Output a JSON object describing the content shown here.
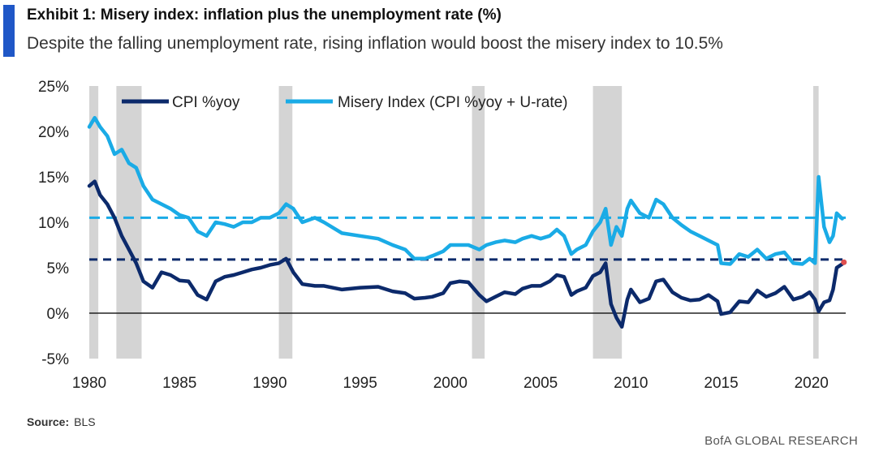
{
  "header": {
    "title": "Exhibit 1: Misery index: inflation plus the unemployment rate (%)",
    "subtitle": "Despite the falling unemployment rate, rising inflation would boost the misery index to 10.5%"
  },
  "source": {
    "label": "Source:",
    "value": "BLS"
  },
  "footer": {
    "brand": "BofA GLOBAL RESEARCH"
  },
  "colors": {
    "accent": "#1f57c7",
    "cpi": "#0c2a6b",
    "misery": "#1aabe6",
    "recession": "#d4d4d4",
    "projection_dot": "#e05050"
  },
  "chart_data": {
    "type": "line",
    "title": "Exhibit 1: Misery index: inflation plus the unemployment rate (%)",
    "xlabel": "",
    "ylabel": "",
    "xlim": [
      1980,
      2021.9
    ],
    "ylim": [
      -5,
      25
    ],
    "y_ticks": [
      -5,
      0,
      5,
      10,
      15,
      20,
      25
    ],
    "y_tick_labels": [
      "-5%",
      "0%",
      "5%",
      "10%",
      "15%",
      "20%",
      "25%"
    ],
    "x_ticks": [
      1980,
      1985,
      1990,
      1995,
      2000,
      2005,
      2010,
      2015,
      2020
    ],
    "x_tick_labels": [
      "1980",
      "1985",
      "1990",
      "1995",
      "2000",
      "2005",
      "2010",
      "2015",
      "2020"
    ],
    "legend_position": "top",
    "recessions": [
      [
        1980.0,
        1980.5
      ],
      [
        1981.5,
        1982.9
      ],
      [
        1990.5,
        1991.25
      ],
      [
        2001.2,
        2001.9
      ],
      [
        2007.9,
        2009.5
      ],
      [
        2020.1,
        2020.4
      ]
    ],
    "reference_lines": [
      {
        "name": "Misery index projection",
        "value": 10.5,
        "style": "dashed",
        "color": "#1aabe6"
      },
      {
        "name": "CPI projection",
        "value": 5.9,
        "style": "dashed",
        "color": "#0c2a6b"
      },
      {
        "name": "zero",
        "value": 0,
        "style": "solid",
        "color": "#222222"
      }
    ],
    "projection_point": {
      "x": 2021.8,
      "y": 5.6
    },
    "series": [
      {
        "name": "CPI %yoy",
        "color": "#0c2a6b",
        "x": [
          1980.0,
          1980.3,
          1980.6,
          1981.0,
          1981.4,
          1981.8,
          1982.2,
          1982.6,
          1983.0,
          1983.5,
          1984.0,
          1984.5,
          1985.0,
          1985.5,
          1986.0,
          1986.5,
          1987.0,
          1987.5,
          1988.0,
          1988.5,
          1989.0,
          1989.5,
          1990.0,
          1990.5,
          1990.9,
          1991.3,
          1991.8,
          1992.5,
          1993.0,
          1994.0,
          1995.0,
          1996.0,
          1996.8,
          1997.5,
          1998.0,
          1998.6,
          1999.0,
          1999.6,
          2000.0,
          2000.5,
          2001.0,
          2001.6,
          2002.0,
          2002.5,
          2003.0,
          2003.6,
          2004.0,
          2004.5,
          2005.0,
          2005.5,
          2005.9,
          2006.3,
          2006.7,
          2007.0,
          2007.5,
          2007.9,
          2008.3,
          2008.6,
          2008.9,
          2009.2,
          2009.5,
          2009.8,
          2010.0,
          2010.5,
          2011.0,
          2011.4,
          2011.8,
          2012.3,
          2012.8,
          2013.3,
          2013.8,
          2014.3,
          2014.8,
          2015.0,
          2015.5,
          2016.0,
          2016.5,
          2017.0,
          2017.5,
          2018.0,
          2018.5,
          2019.0,
          2019.5,
          2019.9,
          2020.2,
          2020.4,
          2020.7,
          2021.0,
          2021.2,
          2021.4,
          2021.7
        ],
        "values": [
          14.0,
          14.5,
          13.0,
          12.0,
          10.5,
          8.5,
          7.0,
          5.5,
          3.5,
          2.8,
          4.5,
          4.2,
          3.6,
          3.5,
          2.0,
          1.5,
          3.5,
          4.0,
          4.2,
          4.5,
          4.8,
          5.0,
          5.3,
          5.5,
          6.0,
          4.5,
          3.2,
          3.0,
          3.0,
          2.6,
          2.8,
          2.9,
          2.4,
          2.2,
          1.6,
          1.7,
          1.8,
          2.2,
          3.3,
          3.5,
          3.4,
          2.0,
          1.3,
          1.8,
          2.3,
          2.1,
          2.7,
          3.0,
          3.0,
          3.5,
          4.2,
          4.0,
          2.0,
          2.4,
          2.8,
          4.1,
          4.5,
          5.5,
          1.0,
          -0.5,
          -1.5,
          1.5,
          2.6,
          1.2,
          1.6,
          3.5,
          3.7,
          2.3,
          1.7,
          1.4,
          1.5,
          2.0,
          1.3,
          -0.1,
          0.1,
          1.3,
          1.2,
          2.5,
          1.8,
          2.2,
          2.9,
          1.5,
          1.8,
          2.3,
          1.5,
          0.2,
          1.2,
          1.4,
          2.6,
          5.0,
          5.4
        ]
      },
      {
        "name": "Misery Index (CPI %yoy + U-rate)",
        "color": "#1aabe6",
        "x": [
          1980.0,
          1980.3,
          1980.6,
          1981.0,
          1981.4,
          1981.8,
          1982.2,
          1982.6,
          1983.0,
          1983.5,
          1984.0,
          1984.5,
          1985.0,
          1985.5,
          1986.0,
          1986.5,
          1987.0,
          1987.5,
          1988.0,
          1988.5,
          1989.0,
          1989.5,
          1990.0,
          1990.5,
          1990.9,
          1991.3,
          1991.8,
          1992.5,
          1993.0,
          1994.0,
          1995.0,
          1996.0,
          1996.8,
          1997.5,
          1998.0,
          1998.6,
          1999.0,
          1999.6,
          2000.0,
          2000.5,
          2001.0,
          2001.6,
          2002.0,
          2002.5,
          2003.0,
          2003.6,
          2004.0,
          2004.5,
          2005.0,
          2005.5,
          2005.9,
          2006.3,
          2006.7,
          2007.0,
          2007.5,
          2007.9,
          2008.3,
          2008.6,
          2008.9,
          2009.2,
          2009.5,
          2009.8,
          2010.0,
          2010.5,
          2011.0,
          2011.4,
          2011.8,
          2012.3,
          2012.8,
          2013.3,
          2013.8,
          2014.3,
          2014.8,
          2015.0,
          2015.5,
          2016.0,
          2016.5,
          2017.0,
          2017.5,
          2018.0,
          2018.5,
          2019.0,
          2019.5,
          2019.9,
          2020.2,
          2020.4,
          2020.7,
          2021.0,
          2021.2,
          2021.4,
          2021.7
        ],
        "values": [
          20.5,
          21.5,
          20.5,
          19.5,
          17.5,
          18.0,
          16.5,
          16.0,
          14.0,
          12.5,
          12.0,
          11.5,
          10.8,
          10.5,
          9.0,
          8.5,
          10.0,
          9.8,
          9.5,
          10.0,
          10.0,
          10.5,
          10.5,
          11.0,
          12.0,
          11.5,
          10.0,
          10.5,
          10.0,
          8.8,
          8.5,
          8.2,
          7.5,
          7.0,
          6.0,
          6.0,
          6.3,
          6.8,
          7.5,
          7.5,
          7.5,
          7.0,
          7.5,
          7.8,
          8.0,
          7.8,
          8.2,
          8.5,
          8.2,
          8.5,
          9.2,
          8.5,
          6.5,
          7.0,
          7.5,
          9.0,
          10.0,
          11.5,
          7.5,
          9.5,
          8.5,
          11.5,
          12.4,
          11.0,
          10.5,
          12.5,
          12.0,
          10.5,
          9.7,
          9.0,
          8.5,
          8.0,
          7.5,
          5.5,
          5.4,
          6.5,
          6.2,
          7.0,
          6.0,
          6.5,
          6.7,
          5.5,
          5.4,
          6.0,
          5.5,
          15.0,
          9.5,
          7.8,
          8.5,
          11.0,
          10.4
        ]
      }
    ]
  }
}
